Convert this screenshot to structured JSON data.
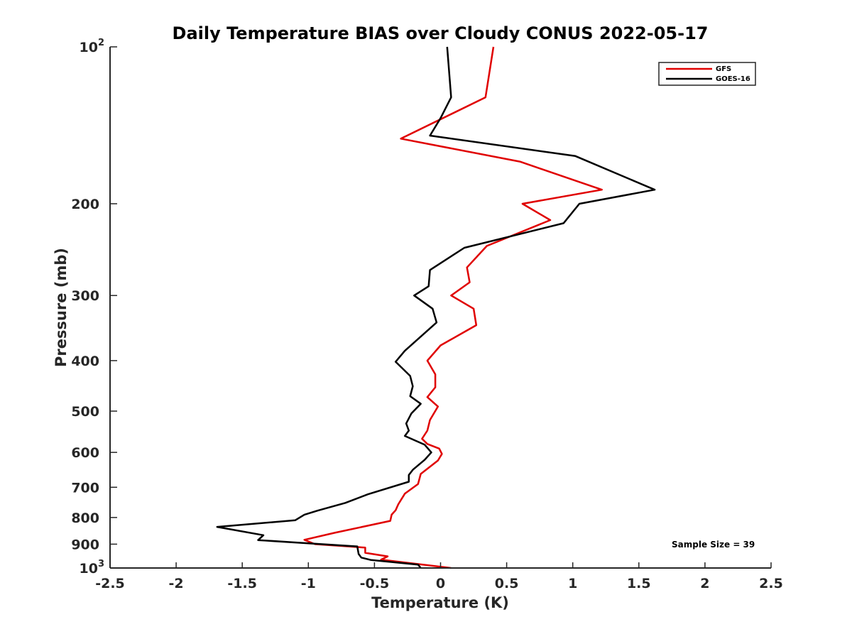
{
  "chart_data": {
    "type": "line",
    "title": "Daily Temperature BIAS over Cloudy CONUS 2022-05-17",
    "xlabel": "Temperature (K)",
    "ylabel": "Pressure (mb)",
    "xlim": [
      -2.5,
      2.5
    ],
    "ylim": [
      100,
      1000
    ],
    "y_scale": "log",
    "y_reversed": true,
    "x_ticks": [
      -2.5,
      -2,
      -1.5,
      -1,
      -0.5,
      0,
      0.5,
      1,
      1.5,
      2,
      2.5
    ],
    "x_tick_labels": [
      "-2.5",
      "-2",
      "-1.5",
      "-1",
      "-0.5",
      "0",
      "0.5",
      "1",
      "1.5",
      "2",
      "2.5"
    ],
    "y_ticks": [
      {
        "value": 100,
        "base": "10",
        "exp": "2"
      },
      {
        "value": 200,
        "label": "200"
      },
      {
        "value": 300,
        "label": "300"
      },
      {
        "value": 400,
        "label": "400"
      },
      {
        "value": 500,
        "label": "500"
      },
      {
        "value": 600,
        "label": "600"
      },
      {
        "value": 700,
        "label": "700"
      },
      {
        "value": 800,
        "label": "800"
      },
      {
        "value": 900,
        "label": "900"
      },
      {
        "value": 1000,
        "base": "10",
        "exp": "3"
      }
    ],
    "legend_position": "top-right",
    "annotation": "Sample Size = 39",
    "series": [
      {
        "name": "GFS",
        "color": "#e00000",
        "points": [
          {
            "t": 0.4,
            "p": 100
          },
          {
            "t": 0.34,
            "p": 125
          },
          {
            "t": -0.3,
            "p": 150
          },
          {
            "t": 0.6,
            "p": 166
          },
          {
            "t": 1.22,
            "p": 188
          },
          {
            "t": 0.62,
            "p": 200
          },
          {
            "t": 0.83,
            "p": 215
          },
          {
            "t": 0.35,
            "p": 241
          },
          {
            "t": 0.2,
            "p": 265
          },
          {
            "t": 0.22,
            "p": 283
          },
          {
            "t": 0.08,
            "p": 300
          },
          {
            "t": 0.25,
            "p": 318
          },
          {
            "t": 0.27,
            "p": 342
          },
          {
            "t": 0.0,
            "p": 374
          },
          {
            "t": -0.1,
            "p": 400
          },
          {
            "t": -0.04,
            "p": 425
          },
          {
            "t": -0.04,
            "p": 450
          },
          {
            "t": -0.1,
            "p": 470
          },
          {
            "t": -0.02,
            "p": 490
          },
          {
            "t": -0.08,
            "p": 520
          },
          {
            "t": -0.1,
            "p": 545
          },
          {
            "t": -0.14,
            "p": 565
          },
          {
            "t": -0.1,
            "p": 578
          },
          {
            "t": -0.01,
            "p": 590
          },
          {
            "t": 0.01,
            "p": 604
          },
          {
            "t": -0.02,
            "p": 622
          },
          {
            "t": -0.15,
            "p": 660
          },
          {
            "t": -0.17,
            "p": 690
          },
          {
            "t": -0.27,
            "p": 720
          },
          {
            "t": -0.32,
            "p": 755
          },
          {
            "t": -0.34,
            "p": 775
          },
          {
            "t": -0.37,
            "p": 790
          },
          {
            "t": -0.38,
            "p": 812
          },
          {
            "t": -0.8,
            "p": 856
          },
          {
            "t": -1.03,
            "p": 883
          },
          {
            "t": -0.95,
            "p": 900
          },
          {
            "t": -0.57,
            "p": 914
          },
          {
            "t": -0.57,
            "p": 935
          },
          {
            "t": -0.4,
            "p": 950
          },
          {
            "t": -0.45,
            "p": 964
          },
          {
            "t": 0.08,
            "p": 1000
          }
        ]
      },
      {
        "name": "GOES-16",
        "color": "#000000",
        "points": [
          {
            "t": 0.05,
            "p": 100
          },
          {
            "t": 0.08,
            "p": 125
          },
          {
            "t": 0.0,
            "p": 137
          },
          {
            "t": -0.08,
            "p": 148
          },
          {
            "t": 1.02,
            "p": 162
          },
          {
            "t": 1.62,
            "p": 188
          },
          {
            "t": 1.05,
            "p": 200
          },
          {
            "t": 0.93,
            "p": 218
          },
          {
            "t": 0.18,
            "p": 243
          },
          {
            "t": -0.08,
            "p": 268
          },
          {
            "t": -0.09,
            "p": 288
          },
          {
            "t": -0.2,
            "p": 300
          },
          {
            "t": -0.06,
            "p": 318
          },
          {
            "t": -0.03,
            "p": 338
          },
          {
            "t": -0.27,
            "p": 383
          },
          {
            "t": -0.34,
            "p": 402
          },
          {
            "t": -0.23,
            "p": 428
          },
          {
            "t": -0.21,
            "p": 448
          },
          {
            "t": -0.23,
            "p": 468
          },
          {
            "t": -0.15,
            "p": 484
          },
          {
            "t": -0.22,
            "p": 505
          },
          {
            "t": -0.26,
            "p": 528
          },
          {
            "t": -0.24,
            "p": 545
          },
          {
            "t": -0.27,
            "p": 558
          },
          {
            "t": -0.12,
            "p": 580
          },
          {
            "t": -0.07,
            "p": 600
          },
          {
            "t": -0.12,
            "p": 620
          },
          {
            "t": -0.21,
            "p": 648
          },
          {
            "t": -0.24,
            "p": 663
          },
          {
            "t": -0.24,
            "p": 683
          },
          {
            "t": -0.55,
            "p": 722
          },
          {
            "t": -0.72,
            "p": 750
          },
          {
            "t": -0.93,
            "p": 776
          },
          {
            "t": -1.03,
            "p": 790
          },
          {
            "t": -1.1,
            "p": 810
          },
          {
            "t": -1.69,
            "p": 834
          },
          {
            "t": -1.34,
            "p": 865
          },
          {
            "t": -1.38,
            "p": 884
          },
          {
            "t": -0.63,
            "p": 909
          },
          {
            "t": -0.62,
            "p": 940
          },
          {
            "t": -0.6,
            "p": 955
          },
          {
            "t": -0.53,
            "p": 965
          },
          {
            "t": -0.17,
            "p": 985
          },
          {
            "t": -0.15,
            "p": 1000
          }
        ]
      }
    ]
  }
}
